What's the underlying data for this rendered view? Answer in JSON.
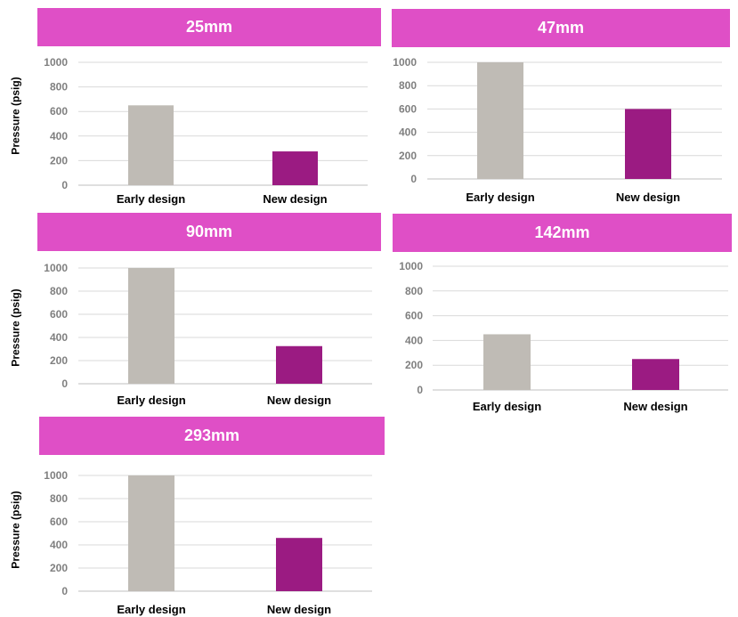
{
  "colors": {
    "header_bg": "#df4fc6",
    "early": "#bfbbb5",
    "new": "#9b1b82",
    "grid": "#d9d9d9",
    "tick_text": "#7f7f7f",
    "category_text": "#000000"
  },
  "chart_data": [
    {
      "type": "bar",
      "title": "25mm",
      "ylabel": "Pressure (psig)",
      "categories": [
        "Early design",
        "New design"
      ],
      "values": [
        650,
        275
      ],
      "ylim": [
        0,
        1000
      ],
      "yticks": [
        "0",
        "200",
        "400",
        "600",
        "800",
        "1000"
      ],
      "grid": true
    },
    {
      "type": "bar",
      "title": "47mm",
      "ylabel": "",
      "categories": [
        "Early design",
        "New design"
      ],
      "values": [
        1000,
        600
      ],
      "ylim": [
        0,
        1000
      ],
      "yticks": [
        "0",
        "200",
        "400",
        "600",
        "800",
        "1000"
      ],
      "grid": true
    },
    {
      "type": "bar",
      "title": "90mm",
      "ylabel": "Pressure (psig)",
      "categories": [
        "Early design",
        "New design"
      ],
      "values": [
        1000,
        325
      ],
      "ylim": [
        0,
        1000
      ],
      "yticks": [
        "0",
        "200",
        "400",
        "600",
        "800",
        "1000"
      ],
      "grid": true
    },
    {
      "type": "bar",
      "title": "142mm",
      "ylabel": "",
      "categories": [
        "Early design",
        "New design"
      ],
      "values": [
        450,
        250
      ],
      "ylim": [
        0,
        1000
      ],
      "yticks": [
        "0",
        "200",
        "400",
        "600",
        "800",
        "1000"
      ],
      "grid": true
    },
    {
      "type": "bar",
      "title": "293mm",
      "ylabel": "Pressure (psig)",
      "categories": [
        "Early design",
        "New design"
      ],
      "values": [
        1000,
        460
      ],
      "ylim": [
        0,
        1000
      ],
      "yticks": [
        "0",
        "200",
        "400",
        "600",
        "800",
        "1000"
      ],
      "grid": true
    }
  ]
}
